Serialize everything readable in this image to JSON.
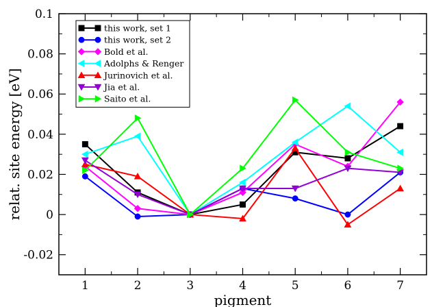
{
  "chart_data": {
    "type": "line",
    "xlabel": "pigment",
    "ylabel": "relat. site energy [eV]",
    "xlim": [
      0.5,
      7.5
    ],
    "ylim": [
      -0.03,
      0.1
    ],
    "x_ticks": [
      1,
      2,
      3,
      4,
      5,
      6,
      7
    ],
    "y_ticks": [
      -0.02,
      0,
      0.02,
      0.04,
      0.06,
      0.08,
      0.1
    ],
    "y_tick_labels": [
      "-0.02",
      "0",
      "0.02",
      "0.04",
      "0.06",
      "0.08",
      "0.1"
    ],
    "grid": false,
    "legend_position": "top-left",
    "x": [
      1,
      2,
      3,
      4,
      5,
      6,
      7
    ],
    "series": [
      {
        "name": "this work, set 1",
        "color": "#000000",
        "marker": "square",
        "values": [
          0.035,
          0.011,
          0.0,
          0.005,
          0.031,
          0.028,
          0.044
        ]
      },
      {
        "name": "this work, set 2",
        "color": "#0000ff",
        "marker": "circle",
        "values": [
          0.019,
          -0.001,
          0.0,
          0.013,
          0.008,
          0.0,
          0.021
        ]
      },
      {
        "name": "Bold et al.",
        "color": "#ff00ff",
        "marker": "diamond",
        "values": [
          0.024,
          0.003,
          0.0,
          0.011,
          0.035,
          0.024,
          0.056
        ]
      },
      {
        "name": "Adolphs & Renger",
        "color": "#00ffff",
        "marker": "triangle-left",
        "values": [
          0.03,
          0.039,
          0.0,
          0.016,
          0.036,
          0.054,
          0.031
        ]
      },
      {
        "name": "Jurinovich et al.",
        "color": "#ff0000",
        "marker": "triangle-up",
        "values": [
          0.025,
          0.019,
          0.0,
          -0.002,
          0.033,
          -0.005,
          0.013
        ]
      },
      {
        "name": "Jia et al.",
        "color": "#9400d3",
        "marker": "triangle-down",
        "values": [
          0.027,
          0.01,
          0.0,
          0.013,
          0.013,
          0.023,
          0.021
        ]
      },
      {
        "name": "Saito et al.",
        "color": "#00ff00",
        "marker": "triangle-right",
        "values": [
          0.022,
          0.048,
          0.0,
          0.023,
          0.057,
          0.031,
          0.023
        ]
      }
    ]
  }
}
